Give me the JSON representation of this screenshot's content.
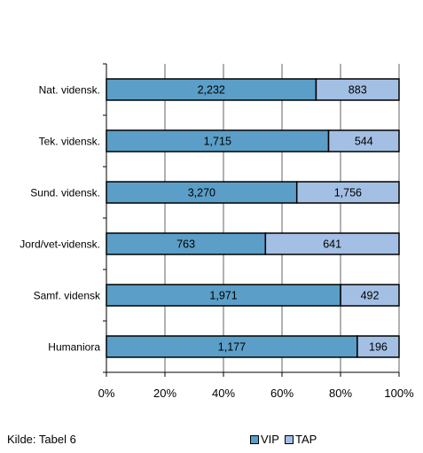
{
  "chart_data": {
    "type": "bar",
    "orientation": "horizontal",
    "stacked": "percent",
    "categories": [
      "Nat. vidensk.",
      "Tek. vidensk.",
      "Sund. vidensk.",
      "Jord/vet-vidensk.",
      "Samf. vidensk",
      "Humaniora"
    ],
    "series": [
      {
        "name": "VIP",
        "values": [
          2232,
          1715,
          3270,
          763,
          1971,
          1177
        ],
        "labels": [
          "2,232",
          "1,715",
          "3,270",
          "763",
          "1,971",
          "1,177"
        ],
        "color": "#5b9ec7"
      },
      {
        "name": "TAP",
        "values": [
          883,
          544,
          1756,
          641,
          492,
          196
        ],
        "labels": [
          "883",
          "544",
          "1,756",
          "641",
          "492",
          "196"
        ],
        "color": "#a3bfe4"
      }
    ],
    "x_ticks": [
      "0%",
      "20%",
      "40%",
      "60%",
      "80%",
      "100%"
    ],
    "xlim": [
      0,
      100
    ],
    "grid": true,
    "legend_position": "bottom-right",
    "title": "",
    "xlabel": "",
    "ylabel": ""
  },
  "source_note": "Kilde: Tabel 6"
}
